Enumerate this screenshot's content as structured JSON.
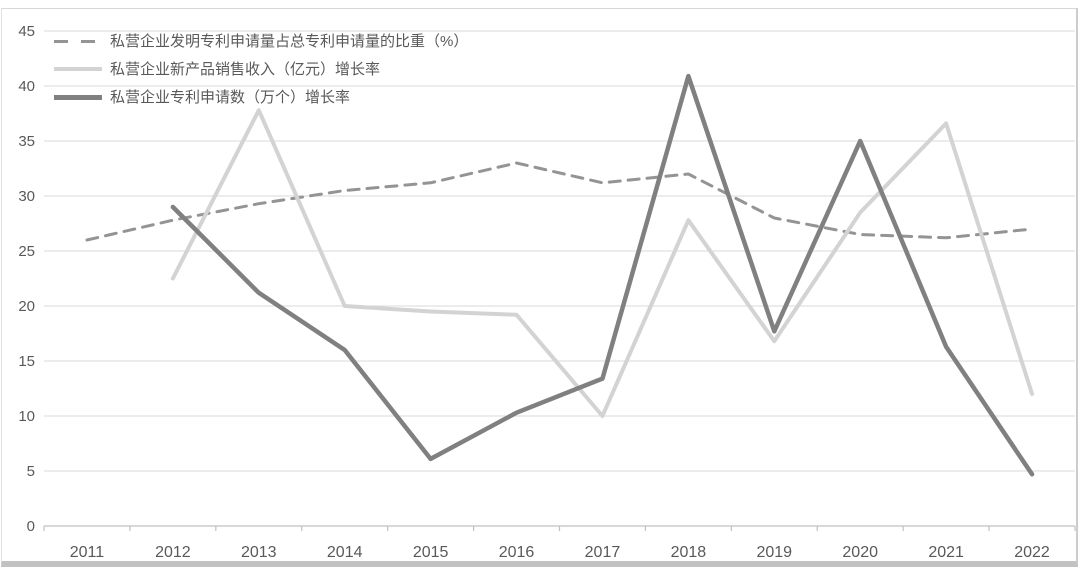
{
  "window": {
    "background": "#ffffff",
    "frame_border_color": "#d8d8d8",
    "frame_bottom_color": "#c2c2c2"
  },
  "chart_data": {
    "type": "line",
    "title": "",
    "xlabel": "",
    "ylabel": "",
    "categories": [
      "2011",
      "2012",
      "2013",
      "2014",
      "2015",
      "2016",
      "2017",
      "2018",
      "2019",
      "2020",
      "2021",
      "2022"
    ],
    "series": [
      {
        "name": "私营企业发明专利申请量占总专利申请量的比重（%）",
        "style": "dashed",
        "color": "#949494",
        "width": 3,
        "values": [
          26,
          27.8,
          29.3,
          30.5,
          31.2,
          33,
          31.2,
          32,
          28,
          26.5,
          26.2,
          27
        ]
      },
      {
        "name": "私营企业新产品销售收入（亿元）增长率",
        "style": "solid",
        "color": "#d3d3d3",
        "width": 4,
        "values": [
          null,
          22.5,
          37.8,
          20,
          19.5,
          19.2,
          10,
          27.8,
          16.8,
          28.5,
          36.6,
          12
        ]
      },
      {
        "name": "私营企业专利申请数（万个）增长率",
        "style": "solid",
        "color": "#808080",
        "width": 4.5,
        "values": [
          null,
          29,
          21.2,
          16,
          6.1,
          10.3,
          13.4,
          40.9,
          17.7,
          35,
          16.3,
          4.7
        ]
      }
    ],
    "ylim": [
      0,
      45
    ],
    "yticks": [
      0,
      5,
      10,
      15,
      20,
      25,
      30,
      35,
      40,
      45
    ],
    "grid": true,
    "legend_position": "top-left",
    "axis_label_color": "#595959",
    "gridline_color": "#dadada",
    "axis_line_color": "#c0c0c0"
  }
}
